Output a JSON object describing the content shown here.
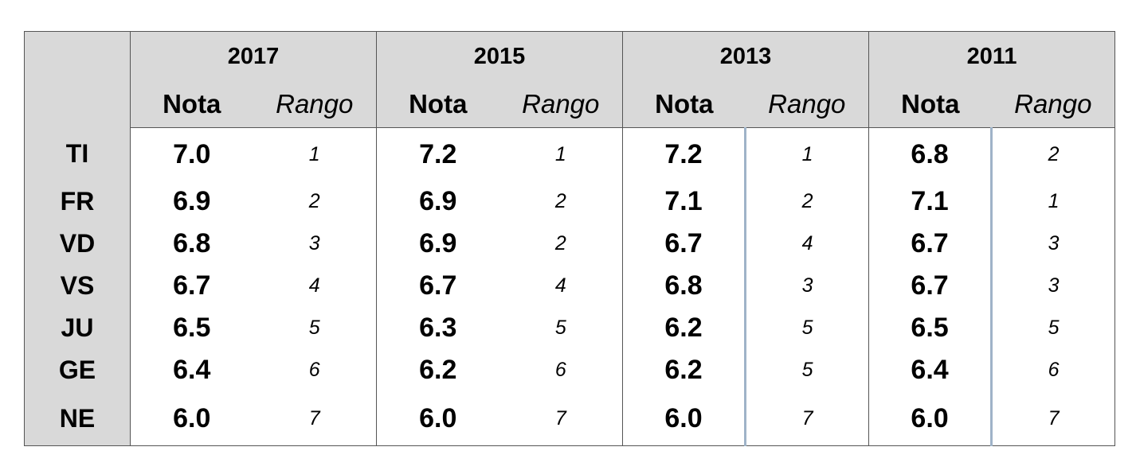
{
  "chart_data": {
    "type": "table",
    "columns_years": [
      "2017",
      "2015",
      "2013",
      "2011"
    ],
    "sub_headers": {
      "score": "Nota",
      "rank": "Rango"
    },
    "rows": [
      {
        "canton": "TI",
        "values": [
          [
            "7.0",
            "1"
          ],
          [
            "7.2",
            "1"
          ],
          [
            "7.2",
            "1"
          ],
          [
            "6.8",
            "2"
          ]
        ]
      },
      {
        "canton": "FR",
        "values": [
          [
            "6.9",
            "2"
          ],
          [
            "6.9",
            "2"
          ],
          [
            "7.1",
            "2"
          ],
          [
            "7.1",
            "1"
          ]
        ]
      },
      {
        "canton": "VD",
        "values": [
          [
            "6.8",
            "3"
          ],
          [
            "6.9",
            "2"
          ],
          [
            "6.7",
            "4"
          ],
          [
            "6.7",
            "3"
          ]
        ]
      },
      {
        "canton": "VS",
        "values": [
          [
            "6.7",
            "4"
          ],
          [
            "6.7",
            "4"
          ],
          [
            "6.8",
            "3"
          ],
          [
            "6.7",
            "3"
          ]
        ]
      },
      {
        "canton": "JU",
        "values": [
          [
            "6.5",
            "5"
          ],
          [
            "6.3",
            "5"
          ],
          [
            "6.2",
            "5"
          ],
          [
            "6.5",
            "5"
          ]
        ]
      },
      {
        "canton": "GE",
        "values": [
          [
            "6.4",
            "6"
          ],
          [
            "6.2",
            "6"
          ],
          [
            "6.2",
            "5"
          ],
          [
            "6.4",
            "6"
          ]
        ]
      },
      {
        "canton": "NE",
        "values": [
          [
            "6.0",
            "7"
          ],
          [
            "6.0",
            "7"
          ],
          [
            "6.0",
            "7"
          ],
          [
            "6.0",
            "7"
          ]
        ]
      }
    ],
    "colors": {
      "header_bg": "#d9d9d9",
      "separator_blue": "#9fb3c8"
    }
  }
}
